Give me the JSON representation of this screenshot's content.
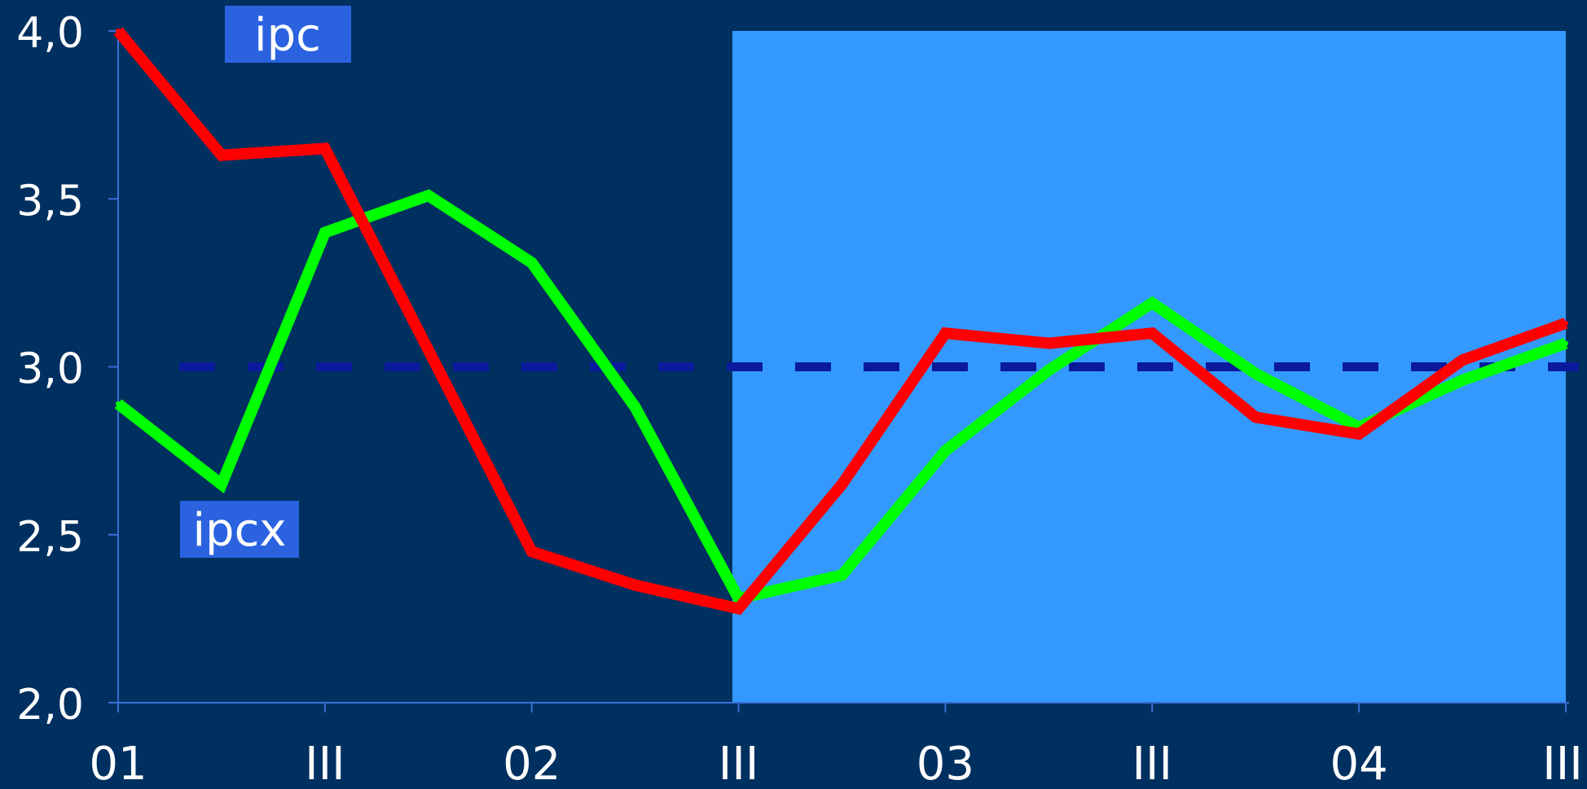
{
  "colors": {
    "background": "#003060",
    "forecast_area": "#3399ff",
    "axis": "#3a6fd8",
    "ipc_line": "#ff0000",
    "ipcx_line": "#00ff00",
    "target_line": "#0a1a9a",
    "label_box": "#2a62e0",
    "text": "#ffffff"
  },
  "chart_data": {
    "type": "line",
    "x": [
      0,
      0.5,
      1,
      1.5,
      2,
      2.5,
      3,
      3.5,
      4,
      4.5,
      5,
      5.5,
      6,
      6.5,
      7
    ],
    "x_tick_positions": [
      0,
      1,
      2,
      3,
      4,
      5,
      6,
      7
    ],
    "x_tick_labels": [
      "01",
      "III",
      "02",
      "III",
      "03",
      "III",
      "04",
      "III"
    ],
    "y_tick_values": [
      2.0,
      2.5,
      3.0,
      3.5,
      4.0
    ],
    "y_tick_labels": [
      "2,0",
      "2,5",
      "3,0",
      "3,5",
      "4,0"
    ],
    "ylim": [
      2.0,
      4.0
    ],
    "xlim": [
      0,
      7
    ],
    "shaded_region": {
      "x_start": 2.97,
      "x_end": 7
    },
    "reference_line": {
      "value": 3.0,
      "style": "dashed"
    },
    "series": [
      {
        "name": "ipc",
        "values": [
          4.0,
          3.63,
          3.65,
          3.05,
          2.45,
          2.35,
          2.28,
          2.65,
          3.1,
          3.07,
          3.1,
          2.85,
          2.8,
          3.02,
          3.13
        ]
      },
      {
        "name": "ipcx",
        "values": [
          2.89,
          2.65,
          3.4,
          3.51,
          3.31,
          2.88,
          2.31,
          2.38,
          2.75,
          2.99,
          3.19,
          2.98,
          2.82,
          2.96,
          3.07
        ]
      }
    ],
    "grid": false,
    "legend": "inline labels"
  }
}
